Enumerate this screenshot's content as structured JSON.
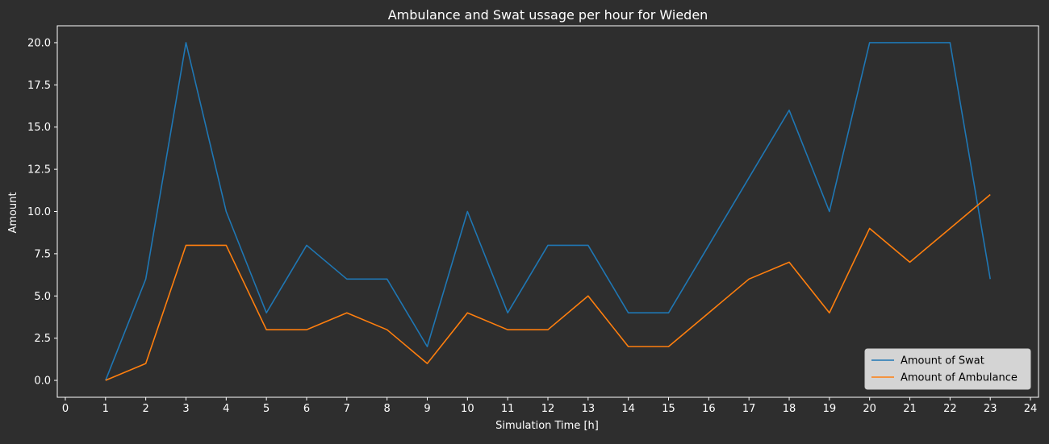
{
  "colors": {
    "background": "#2e2e2e",
    "axes_face": "#2e2e2e",
    "spine": "#ffffff",
    "legend_bg": "#d4d4d4"
  },
  "chart_data": {
    "type": "line",
    "title": "Ambulance and Swat ussage per hour for Wieden",
    "xlabel": "Simulation Time [h]",
    "ylabel": "Amount",
    "xlim": [
      -0.2,
      24.2
    ],
    "ylim": [
      -1.0,
      21.0
    ],
    "xticks": [
      0,
      1,
      2,
      3,
      4,
      5,
      6,
      7,
      8,
      9,
      10,
      11,
      12,
      13,
      14,
      15,
      16,
      17,
      18,
      19,
      20,
      21,
      22,
      23,
      24
    ],
    "yticks": [
      0.0,
      2.5,
      5.0,
      7.5,
      10.0,
      12.5,
      15.0,
      17.5,
      20.0
    ],
    "ytick_labels": [
      "0.0",
      "2.5",
      "5.0",
      "7.5",
      "10.0",
      "12.5",
      "15.0",
      "17.5",
      "20.0"
    ],
    "x": [
      1,
      2,
      3,
      4,
      5,
      6,
      7,
      8,
      9,
      10,
      11,
      12,
      13,
      14,
      15,
      16,
      17,
      18,
      19,
      20,
      21,
      22,
      23
    ],
    "series": [
      {
        "name": "Amount of Swat",
        "color": "#1f77b4",
        "values": [
          0,
          6,
          20,
          10,
          4,
          8,
          6,
          6,
          2,
          10,
          4,
          8,
          8,
          4,
          4,
          8,
          12,
          16,
          10,
          20,
          20,
          20,
          6
        ]
      },
      {
        "name": "Amount of Ambulance",
        "color": "#ff7f0e",
        "values": [
          0,
          1,
          8,
          8,
          3,
          3,
          4,
          3,
          1,
          4,
          3,
          3,
          5,
          2,
          2,
          4,
          6,
          7,
          4,
          9,
          7,
          9,
          11
        ]
      }
    ],
    "grid": false,
    "legend_position": "lower-right"
  }
}
